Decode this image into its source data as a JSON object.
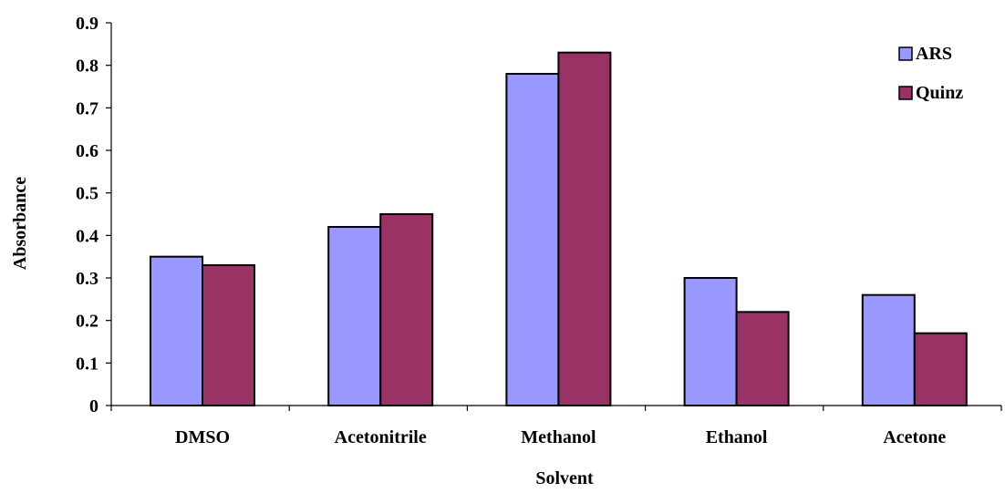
{
  "chart_data": {
    "type": "bar",
    "title": "",
    "xlabel": "Solvent",
    "ylabel": "Absorbance",
    "categories": [
      "DMSO",
      "Acetonitrile",
      "Methanol",
      "Ethanol",
      "Acetone"
    ],
    "series": [
      {
        "name": "ARS",
        "values": [
          0.35,
          0.42,
          0.78,
          0.3,
          0.26
        ],
        "color": "#9999ff"
      },
      {
        "name": "Quinz",
        "values": [
          0.33,
          0.45,
          0.83,
          0.22,
          0.17
        ],
        "color": "#993366"
      }
    ],
    "ylim": [
      0,
      0.9
    ],
    "yticks": [
      "0",
      "0.1",
      "0.2",
      "0.3",
      "0.4",
      "0.5",
      "0.6",
      "0.7",
      "0.8",
      "0.9"
    ],
    "grid": false,
    "legend_position": "top-right"
  }
}
